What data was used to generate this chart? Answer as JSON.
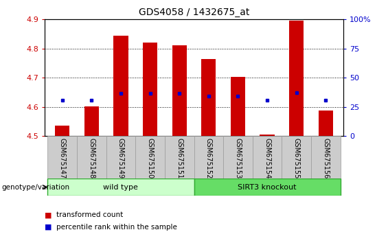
{
  "title": "GDS4058 / 1432675_at",
  "samples": [
    "GSM675147",
    "GSM675148",
    "GSM675149",
    "GSM675150",
    "GSM675151",
    "GSM675152",
    "GSM675153",
    "GSM675154",
    "GSM675155",
    "GSM675156"
  ],
  "bar_bottoms": [
    4.5,
    4.5,
    4.5,
    4.5,
    4.5,
    4.5,
    4.5,
    4.5,
    4.5,
    4.5
  ],
  "bar_tops": [
    4.535,
    4.601,
    4.845,
    4.821,
    4.812,
    4.765,
    4.703,
    4.505,
    4.895,
    4.588
  ],
  "percentile_values": [
    4.624,
    4.624,
    4.647,
    4.646,
    4.647,
    4.636,
    4.636,
    4.624,
    4.648,
    4.624
  ],
  "ylim": [
    4.5,
    4.9
  ],
  "yticks": [
    4.5,
    4.6,
    4.7,
    4.8,
    4.9
  ],
  "right_yticks": [
    0,
    25,
    50,
    75,
    100
  ],
  "bar_color": "#cc0000",
  "dot_color": "#0000cc",
  "groups": [
    {
      "label": "wild type",
      "start": 0,
      "end": 5,
      "color": "#ccffcc"
    },
    {
      "label": "SIRT3 knockout",
      "start": 5,
      "end": 10,
      "color": "#66dd66"
    }
  ],
  "group_row_label": "genotype/variation",
  "legend_items": [
    {
      "color": "#cc0000",
      "label": "transformed count"
    },
    {
      "color": "#0000cc",
      "label": "percentile rank within the sample"
    }
  ],
  "bar_width": 0.5,
  "title_fontsize": 10,
  "label_row_bg": "#cccccc"
}
